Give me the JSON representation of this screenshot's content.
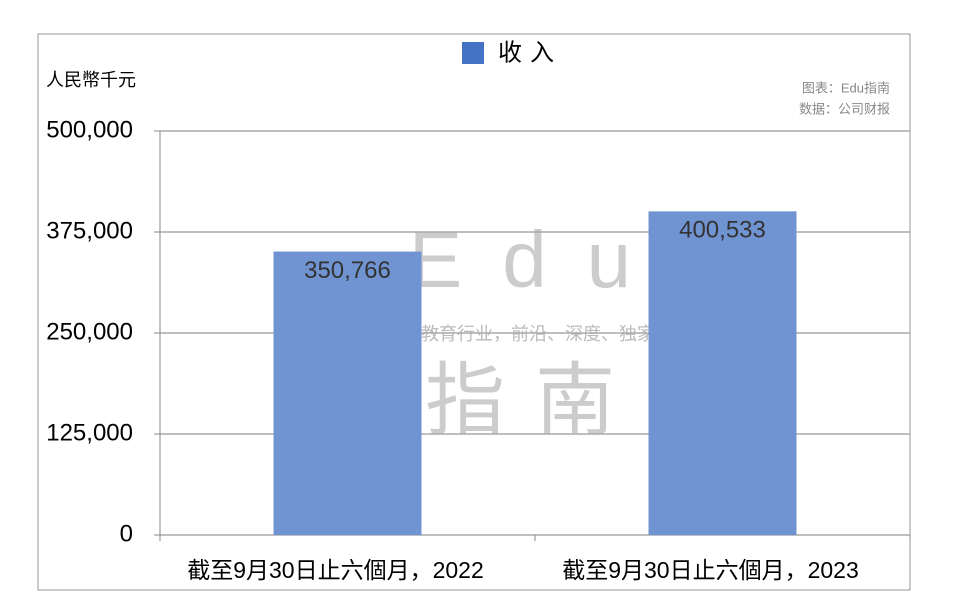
{
  "chart_data": {
    "type": "bar",
    "legend_title": "收入",
    "y_axis_label": "人民幣千元",
    "notes": [
      "图表：Edu指南",
      "数据：公司财报"
    ],
    "watermark": {
      "brand": "Edu",
      "name": "指南",
      "slogan": "教育行业，前沿、深度、独家"
    },
    "categories": [
      "截至9月30日止六個月，2022",
      "截至9月30日止六個月，2023"
    ],
    "series": [
      {
        "name": "收入",
        "color": "#7094d2",
        "values": [
          350766,
          400533
        ],
        "value_labels": [
          "350,766",
          "400,533"
        ]
      }
    ],
    "legend_color": "#4472c4",
    "ylim": [
      0,
      500000
    ],
    "yticks": [
      0,
      {
        "value": 125000,
        "label": "125,000"
      },
      {
        "value": 250000,
        "label": "250,000"
      },
      {
        "value": 375000,
        "label": "375,000"
      },
      {
        "value": 500000,
        "label": "500,000"
      }
    ],
    "grid": true
  }
}
